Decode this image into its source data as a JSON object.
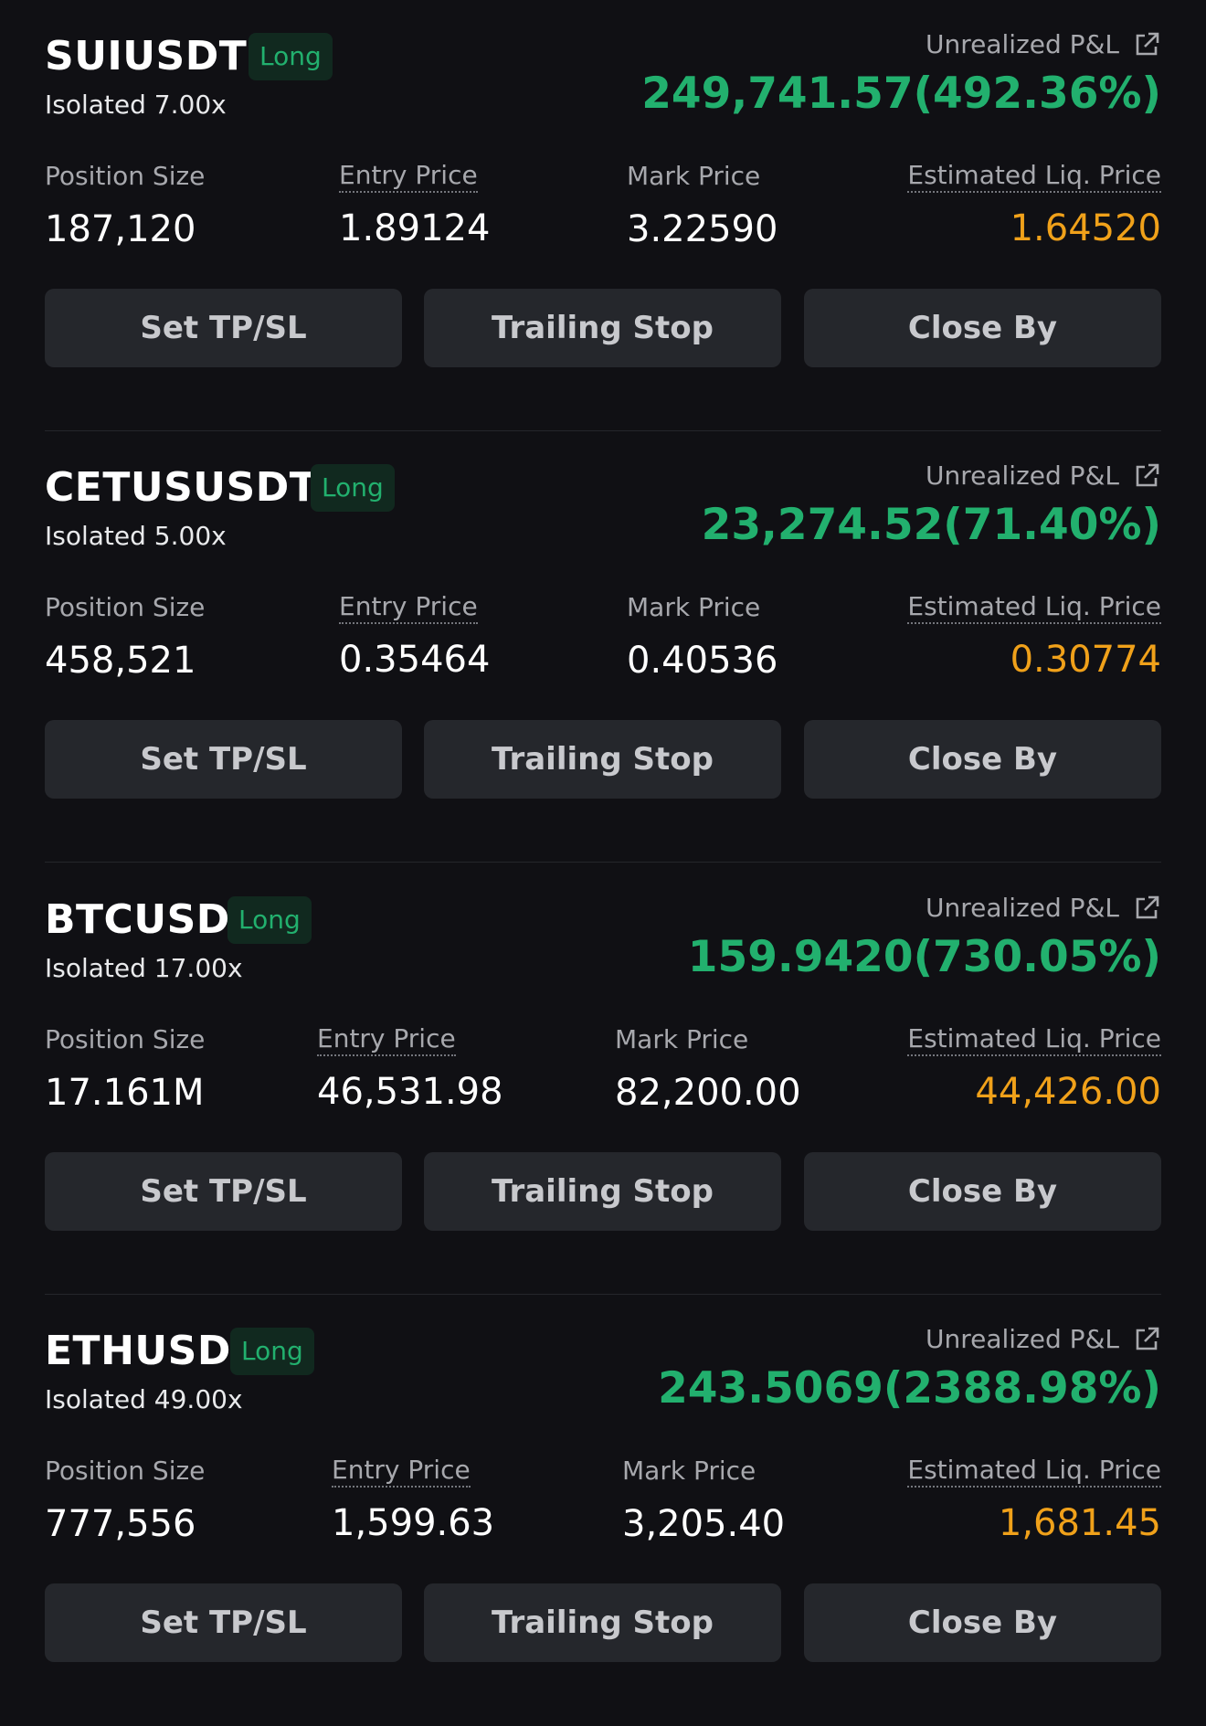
{
  "labels": {
    "side": "Long",
    "unrealized_pnl": "Unrealized P&L",
    "position_size": "Position Size",
    "entry_price": "Entry Price",
    "mark_price": "Mark Price",
    "liq_price": "Estimated Liq. Price",
    "btn_tpsl": "Set TP/SL",
    "btn_trailing": "Trailing Stop",
    "btn_close_by": "Close By"
  },
  "colors": {
    "background": "#101014",
    "profit_green": "#22b06e",
    "liq_orange": "#f0a11a",
    "button_bg": "#25272c",
    "badge_bg": "#11291f"
  },
  "icons": {
    "share": "external-link-icon"
  },
  "positions": [
    {
      "symbol": "SUIUSDT",
      "side": "Long",
      "margin_mode": "Isolated 7.00x",
      "unrealized_pnl": "249,741.57(492.36%)",
      "position_size": "187,120",
      "entry_price": "1.89124",
      "mark_price": "3.22590",
      "liq_price": "1.64520"
    },
    {
      "symbol": "CETUSUSDT",
      "side": "Long",
      "margin_mode": "Isolated 5.00x",
      "unrealized_pnl": "23,274.52(71.40%)",
      "position_size": "458,521",
      "entry_price": "0.35464",
      "mark_price": "0.40536",
      "liq_price": "0.30774"
    },
    {
      "symbol": "BTCUSD",
      "side": "Long",
      "margin_mode": "Isolated 17.00x",
      "unrealized_pnl": "159.9420(730.05%)",
      "position_size": "17.161M",
      "entry_price": "46,531.98",
      "mark_price": "82,200.00",
      "liq_price": "44,426.00"
    },
    {
      "symbol": "ETHUSD",
      "side": "Long",
      "margin_mode": "Isolated 49.00x",
      "unrealized_pnl": "243.5069(2388.98%)",
      "position_size": "777,556",
      "entry_price": "1,599.63",
      "mark_price": "3,205.40",
      "liq_price": "1,681.45"
    }
  ]
}
